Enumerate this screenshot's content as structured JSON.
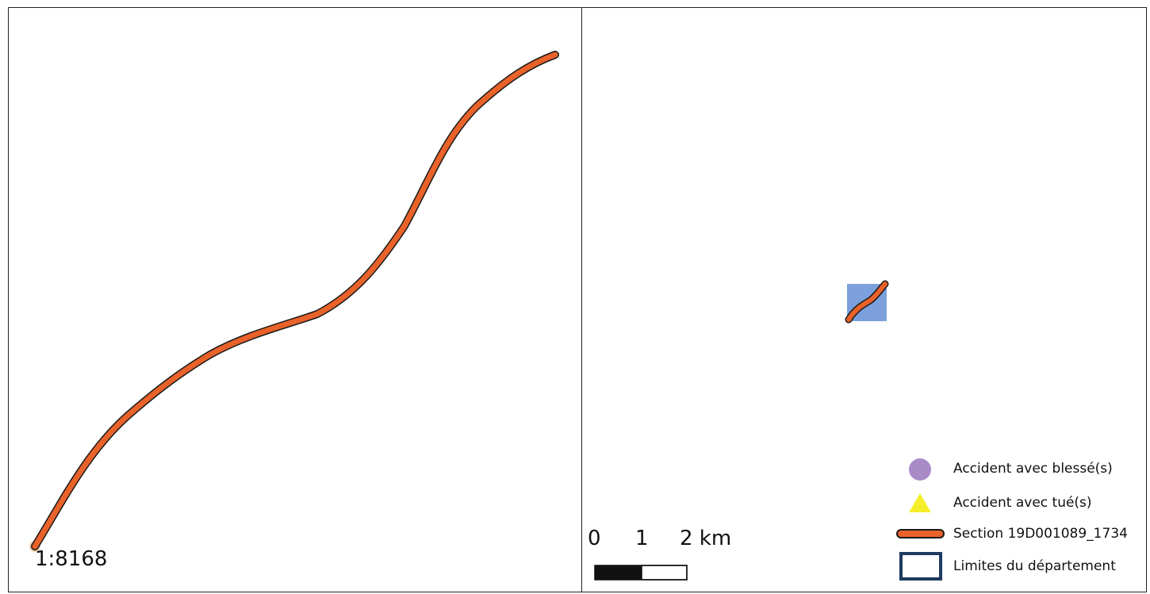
{
  "left_map": {
    "scale_ratio": "1:8168",
    "road_color": "#e8622a"
  },
  "right_map": {
    "department_fill": "#7ba0dc",
    "scale_bar": {
      "labels": [
        "0",
        "1",
        "2 km"
      ]
    }
  },
  "legend": {
    "items": [
      {
        "label": "Accident avec blessé(s)",
        "symbol": "circle",
        "color": "#a98bc8"
      },
      {
        "label": "Accident avec tué(s)",
        "symbol": "triangle",
        "color": "#f5ee2a"
      },
      {
        "label": "Section 19D001089_1734",
        "symbol": "line",
        "color": "#e8622a"
      },
      {
        "label": "Limites du département",
        "symbol": "rectangle",
        "color": "#1f3a5f"
      }
    ]
  }
}
